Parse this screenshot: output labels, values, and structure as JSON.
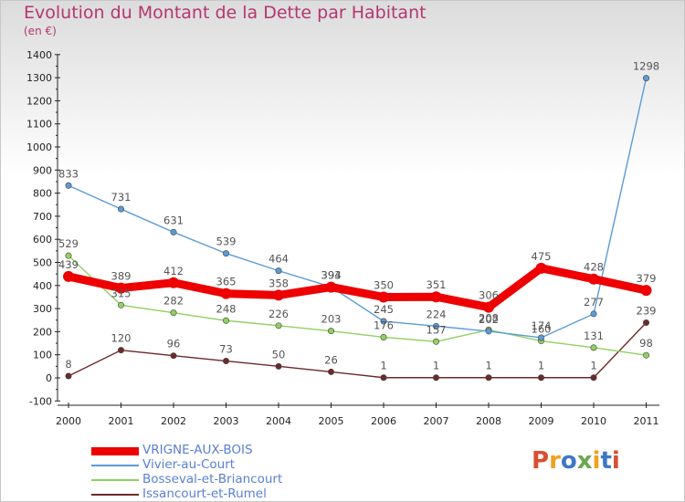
{
  "title": "Evolution du Montant de la Dette par Habitant",
  "subtitle": "(en €)",
  "brand": {
    "text": "Proxiti",
    "colors": [
      "#d94f30",
      "#f0a020",
      "#3c78c8",
      "#6aa84f",
      "#f0a020",
      "#3c78c8",
      "#d94f30"
    ]
  },
  "chart_data": {
    "type": "line",
    "title": "Evolution du Montant de la Dette par Habitant",
    "subtitle": "(en €)",
    "x": [
      "2000",
      "2001",
      "2002",
      "2003",
      "2004",
      "2005",
      "2006",
      "2007",
      "2008",
      "2009",
      "2010",
      "2011"
    ],
    "ylim": [
      -100,
      1400
    ],
    "yticks": [
      "-100",
      "0",
      "100",
      "200",
      "300",
      "400",
      "500",
      "600",
      "700",
      "800",
      "900",
      "1000",
      "1100",
      "1200",
      "1300",
      "1400"
    ],
    "grid": false,
    "legend_position": "bottom-left",
    "series": [
      {
        "name": "VRIGNE-AUX-BOIS",
        "color": "#ee0000",
        "values": [
          439,
          389,
          412,
          365,
          358,
          393,
          350,
          351,
          306,
          475,
          428,
          379
        ],
        "labels": [
          "439",
          "389",
          "412",
          "365",
          "358",
          "393",
          "350",
          "351",
          "306",
          "475",
          "428",
          "379"
        ],
        "thick": true
      },
      {
        "name": "Vivier-au-Court",
        "color": "#5b9bd5",
        "values": [
          833,
          731,
          631,
          539,
          464,
          394,
          245,
          224,
          202,
          174,
          277,
          1298
        ],
        "labels": [
          "833",
          "731",
          "631",
          "539",
          "464",
          "394",
          "245",
          "224",
          "202",
          "174",
          "277",
          "1298"
        ],
        "thick": false
      },
      {
        "name": "Bosseval-et-Briancourt",
        "color": "#90d060",
        "values": [
          529,
          315,
          282,
          248,
          226,
          203,
          176,
          157,
          208,
          160,
          131,
          98
        ],
        "labels": [
          "529",
          "315",
          "282",
          "248",
          "226",
          "203",
          "176",
          "157",
          "208",
          "160",
          "131",
          "98"
        ],
        "thick": false
      },
      {
        "name": "Issancourt-et-Rumel",
        "color": "#6b2a2a",
        "values": [
          8,
          120,
          96,
          73,
          50,
          26,
          1,
          1,
          1,
          1,
          1,
          239
        ],
        "labels": [
          "8",
          "120",
          "96",
          "73",
          "50",
          "26",
          "1",
          "1",
          "1",
          "1",
          "1",
          "239"
        ],
        "thick": false
      }
    ]
  }
}
